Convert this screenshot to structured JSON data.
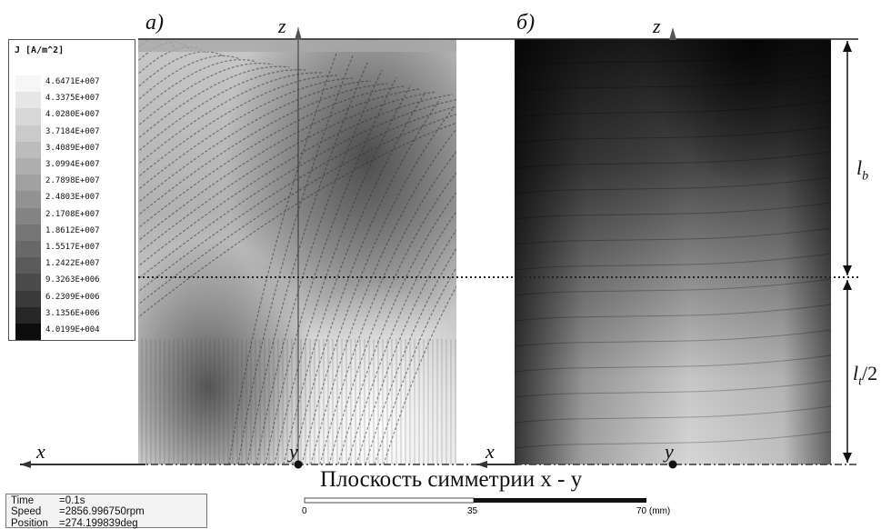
{
  "panel_a": {
    "label": "a)"
  },
  "panel_b": {
    "label": "б)"
  },
  "axes": {
    "z": "z",
    "x": "x",
    "y": "y"
  },
  "dimensions": {
    "lb": "l",
    "lb_sub": "b",
    "lt_half": "l",
    "lt_sub": "t",
    "lt_suffix": "/2"
  },
  "caption": "Плоскость симметрии x - y",
  "legend": {
    "title": "J [A/m^2]",
    "entries": [
      "4.6471E+007",
      "4.3375E+007",
      "4.0280E+007",
      "3.7184E+007",
      "3.4089E+007",
      "3.0994E+007",
      "2.7898E+007",
      "2.4803E+007",
      "2.1708E+007",
      "1.8612E+007",
      "1.5517E+007",
      "1.2422E+007",
      "9.3263E+006",
      "6.2309E+006",
      "3.1356E+006",
      "4.0199E+004"
    ],
    "colors": [
      "#f6f6f6",
      "#e6e6e6",
      "#d8d8d8",
      "#cacaca",
      "#bcbcbc",
      "#aeaeae",
      "#a0a0a0",
      "#929292",
      "#848484",
      "#767676",
      "#686868",
      "#5a5a5a",
      "#4a4a4a",
      "#3a3a3a",
      "#262626",
      "#0c0c0c"
    ]
  },
  "info": {
    "time_label": "Time",
    "time_value": "=0.1s",
    "speed_label": "Speed",
    "speed_value": "=2856.996750rpm",
    "position_label": "Position",
    "position_value": "=274.199839deg"
  },
  "scale": {
    "t0": "0",
    "t1": "35",
    "t2": "70",
    "unit": "(mm)"
  }
}
